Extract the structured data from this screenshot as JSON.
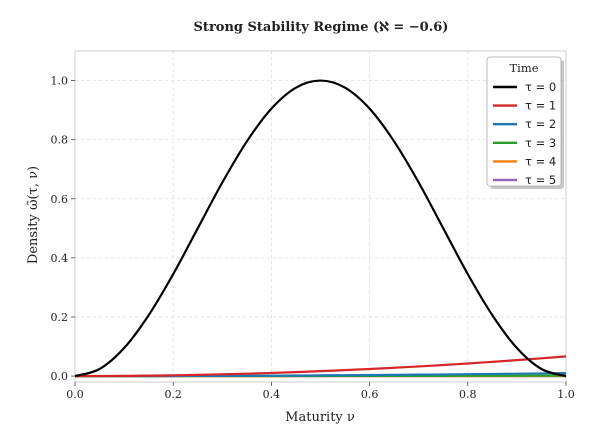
{
  "chart_data": {
    "type": "line",
    "title": "Strong Stability Regime (ℵ = −0.6)",
    "xlabel": "Maturity ν",
    "ylabel": "Density ω̃(τ, ν)",
    "xlim": [
      0.0,
      1.0
    ],
    "ylim": [
      -0.02,
      1.1
    ],
    "x_ticks": [
      "0.0",
      "0.2",
      "0.4",
      "0.6",
      "0.8",
      "1.0"
    ],
    "y_ticks": [
      "0.0",
      "0.2",
      "0.4",
      "0.6",
      "0.8",
      "1.0"
    ],
    "grid": true,
    "legend": {
      "title": "Time",
      "position": "top-right"
    },
    "x": [
      0.0,
      0.05,
      0.1,
      0.15,
      0.2,
      0.25,
      0.3,
      0.35,
      0.4,
      0.45,
      0.5,
      0.55,
      0.6,
      0.65,
      0.7,
      0.75,
      0.8,
      0.85,
      0.9,
      0.95,
      1.0
    ],
    "series": [
      {
        "name": "τ = 0",
        "color": "#000000",
        "values": [
          0.0,
          0.024,
          0.095,
          0.206,
          0.345,
          0.5,
          0.655,
          0.794,
          0.905,
          0.976,
          1.0,
          0.976,
          0.905,
          0.794,
          0.655,
          0.5,
          0.345,
          0.206,
          0.095,
          0.024,
          0.0
        ]
      },
      {
        "name": "τ = 1",
        "color": "#d62728",
        "values": [
          0.0,
          0.0002,
          0.0007,
          0.0015,
          0.0027,
          0.0042,
          0.006,
          0.0082,
          0.0107,
          0.0135,
          0.0167,
          0.0202,
          0.024,
          0.0282,
          0.0327,
          0.0375,
          0.0427,
          0.0482,
          0.054,
          0.0602,
          0.0667
        ]
      },
      {
        "name": "τ = 2",
        "color": "#1f77b4",
        "values": [
          0.0,
          0.0,
          0.0001,
          0.0002,
          0.0004,
          0.0006,
          0.0009,
          0.0012,
          0.0016,
          0.002,
          0.0025,
          0.003,
          0.0036,
          0.0042,
          0.0049,
          0.0056,
          0.0064,
          0.0072,
          0.0081,
          0.009,
          0.01
        ]
      },
      {
        "name": "τ = 3",
        "color": "#2ca02c",
        "values": [
          0.0,
          0.0,
          0.0,
          0.0,
          0.0001,
          0.0001,
          0.0001,
          0.0002,
          0.0002,
          0.0003,
          0.0004,
          0.0005,
          0.0005,
          0.0006,
          0.0007,
          0.0008,
          0.001,
          0.0011,
          0.0012,
          0.0014,
          0.0015
        ]
      },
      {
        "name": "τ = 4",
        "color": "#ff7f0e",
        "values": [
          0.0,
          0.0,
          0.0,
          0.0,
          0.0,
          0.0,
          0.0,
          0.0,
          0.0,
          0.0,
          0.0001,
          0.0001,
          0.0001,
          0.0001,
          0.0001,
          0.0001,
          0.0001,
          0.0002,
          0.0002,
          0.0002,
          0.0002
        ]
      },
      {
        "name": "τ = 5",
        "color": "#9467bd",
        "values": [
          0.0,
          0.0,
          0.0,
          0.0,
          0.0,
          0.0,
          0.0,
          0.0,
          0.0,
          0.0,
          0.0,
          0.0,
          0.0,
          0.0,
          0.0,
          0.0,
          0.0,
          0.0,
          0.0,
          0.0,
          0.0
        ]
      }
    ]
  },
  "colors": {
    "axes_frame": "#cccccc",
    "grid": "#dddddd",
    "text": "#222222",
    "legend_border": "#aaaaaa",
    "legend_shadow": "#999999"
  }
}
